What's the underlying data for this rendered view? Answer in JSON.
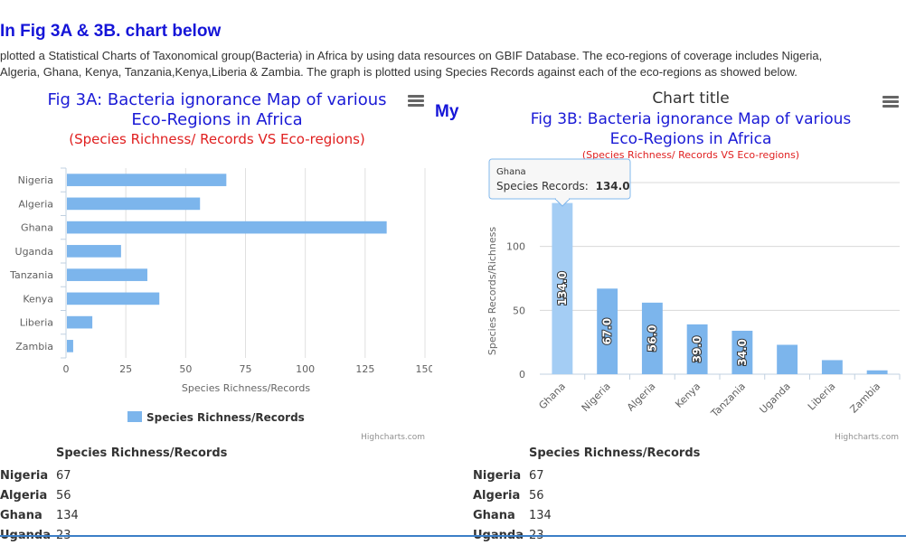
{
  "heading": "In Fig 3A & 3B. chart below",
  "intro_lines": [
    " plotted a Statistical Charts of Taxonomical group(Bacteria) in Africa by using data resources on GBIF Database. The eco-regions of coverage includes Nigeria,",
    "Algeria, Ghana, Kenya, Tanzania,Kenya,Liberia & Zambia. The graph is plotted using Species Records against each of the eco-regions as showed below."
  ],
  "my_label": "My",
  "icons": {
    "menu": "hamburger-menu-icon"
  },
  "colors": {
    "bar": "#7cb5ec",
    "bar_hover": "#a4cdf4",
    "title_blue": "#1a1ad6",
    "subtitle_red": "#e02020",
    "heading_blue": "#1515d8"
  },
  "chart_data": [
    {
      "type": "bar",
      "orientation": "horizontal",
      "title_lines": [
        "Fig 3A: Bacteria ignorance Map of various",
        "Eco-Regions in Africa"
      ],
      "subtitle": "(Species Richness/ Records VS Eco-regions)",
      "categories": [
        "Nigeria",
        "Algeria",
        "Ghana",
        "Uganda",
        "Tanzania",
        "Kenya",
        "Liberia",
        "Zambia"
      ],
      "series": [
        {
          "name": "Species Richness/Records",
          "values": [
            67,
            56,
            134,
            23,
            34,
            39,
            11,
            3
          ]
        }
      ],
      "xlabel": "Species Richness/Records",
      "ylabel": "",
      "value_axis": {
        "min": 0,
        "max": 150,
        "ticks": [
          "0",
          "25",
          "50",
          "75",
          "100",
          "125",
          "150"
        ]
      },
      "grid": true,
      "legend": "bottom-center",
      "credits": "Highcharts.com"
    },
    {
      "type": "bar",
      "orientation": "vertical",
      "top_title": "Chart title",
      "title_lines": [
        "Fig 3B: Bacteria ignorance Map of various",
        "Eco-Regions in Africa"
      ],
      "subtitle": "(Species Richness/ Records VS Eco-regions)",
      "categories": [
        "Ghana",
        "Nigeria",
        "Algeria",
        "Kenya",
        "Tanzania",
        "Uganda",
        "Liberia",
        "Zambia"
      ],
      "series": [
        {
          "name": "Species Records",
          "values": [
            134,
            67,
            56,
            39,
            34,
            23,
            11,
            3
          ]
        }
      ],
      "data_labels": [
        "134.0",
        "67.0",
        "56.0",
        "39.0",
        "34.0",
        "",
        "",
        ""
      ],
      "ylabel": "Species Records/Richness",
      "xlabel": "",
      "value_axis": {
        "min": 0,
        "max": 150,
        "ticks": [
          "0",
          "50",
          "100"
        ]
      },
      "grid": true,
      "tooltip": {
        "category": "Ghana",
        "label": "Species Records:",
        "value": "134.0"
      },
      "credits": "Highcharts.com"
    }
  ],
  "tables": [
    {
      "header": "Species Richness/Records",
      "rows": [
        {
          "cat": "Nigeria",
          "val": "67"
        },
        {
          "cat": "Algeria",
          "val": "56"
        },
        {
          "cat": "Ghana",
          "val": "134"
        },
        {
          "cat": "Uganda",
          "val": "23"
        }
      ]
    },
    {
      "header": "Species Richness/Records",
      "rows": [
        {
          "cat": "Nigeria",
          "val": "67"
        },
        {
          "cat": "Algeria",
          "val": "56"
        },
        {
          "cat": "Ghana",
          "val": "134"
        },
        {
          "cat": "Uganda",
          "val": "23"
        }
      ]
    }
  ]
}
